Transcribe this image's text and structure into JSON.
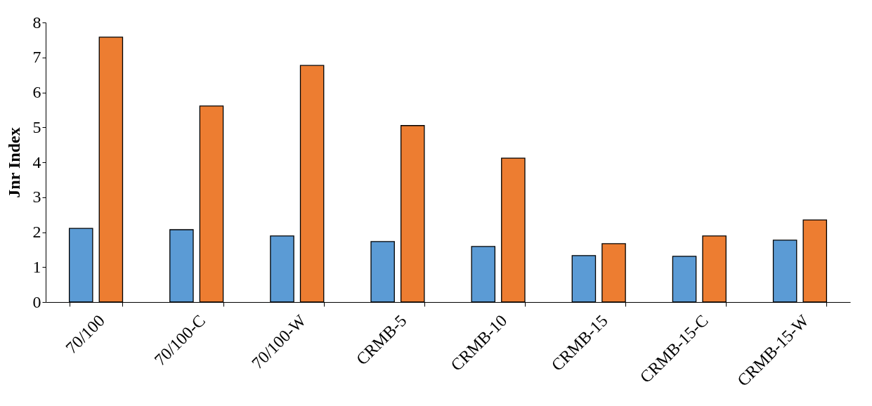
{
  "chart_data": {
    "type": "bar",
    "ylabel": "Jnr Index",
    "categories": [
      "70/100",
      "70/100-C",
      "70/100-W",
      "CRMB-5",
      "CRMB-10",
      "CRMB-15",
      "CRMB-15-C",
      "CRMB-15-W"
    ],
    "series": [
      {
        "color": "#5b9bd5",
        "values": [
          2.11,
          2.07,
          1.89,
          1.73,
          1.59,
          1.33,
          1.31,
          1.77
        ]
      },
      {
        "color": "#ed7d31",
        "values": [
          7.58,
          5.61,
          6.77,
          5.05,
          4.12,
          1.67,
          1.89,
          2.35
        ]
      }
    ],
    "ylim": [
      0,
      8
    ],
    "yticks": [
      0,
      1,
      2,
      3,
      4,
      5,
      6,
      7,
      8
    ],
    "grid": false,
    "legend": false
  }
}
